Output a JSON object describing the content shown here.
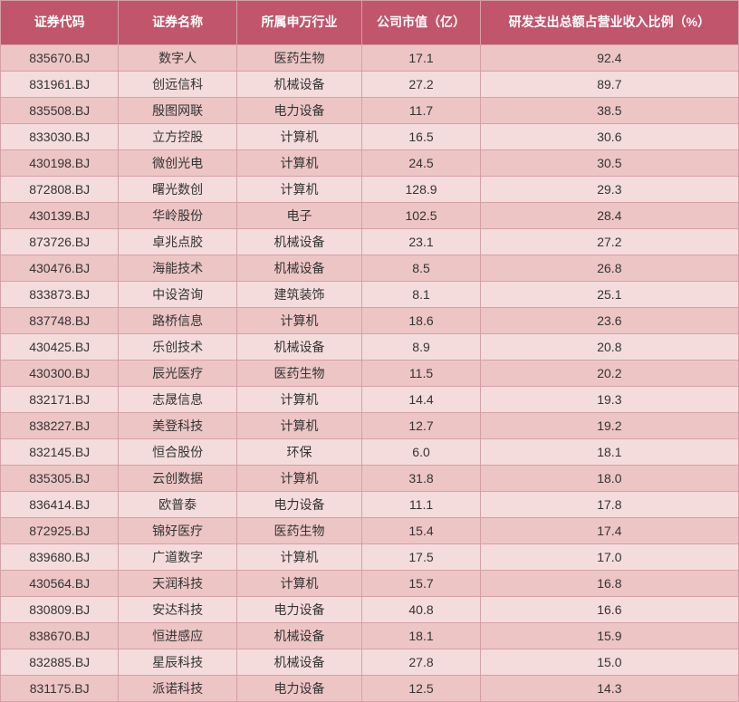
{
  "table": {
    "header_bg": "#c1556c",
    "header_text_color": "#ffffff",
    "row_odd_bg": "#edc5c5",
    "row_even_bg": "#f5dcdc",
    "border_color": "#d4a0a8",
    "cell_text_color": "#333333",
    "font_size": 14,
    "columns": [
      {
        "key": "code",
        "label": "证券代码",
        "width": "16%"
      },
      {
        "key": "name",
        "label": "证券名称",
        "width": "16%"
      },
      {
        "key": "industry",
        "label": "所属申万行业",
        "width": "17%"
      },
      {
        "key": "cap",
        "label": "公司市值（亿）",
        "width": "16%"
      },
      {
        "key": "rd",
        "label": "研发支出总额占营业收入比例（%）",
        "width": "35%"
      }
    ],
    "rows": [
      {
        "code": "835670.BJ",
        "name": "数字人",
        "industry": "医药生物",
        "cap": "17.1",
        "rd": "92.4"
      },
      {
        "code": "831961.BJ",
        "name": "创远信科",
        "industry": "机械设备",
        "cap": "27.2",
        "rd": "89.7"
      },
      {
        "code": "835508.BJ",
        "name": "殷图网联",
        "industry": "电力设备",
        "cap": "11.7",
        "rd": "38.5"
      },
      {
        "code": "833030.BJ",
        "name": "立方控股",
        "industry": "计算机",
        "cap": "16.5",
        "rd": "30.6"
      },
      {
        "code": "430198.BJ",
        "name": "微创光电",
        "industry": "计算机",
        "cap": "24.5",
        "rd": "30.5"
      },
      {
        "code": "872808.BJ",
        "name": "曙光数创",
        "industry": "计算机",
        "cap": "128.9",
        "rd": "29.3"
      },
      {
        "code": "430139.BJ",
        "name": "华岭股份",
        "industry": "电子",
        "cap": "102.5",
        "rd": "28.4"
      },
      {
        "code": "873726.BJ",
        "name": "卓兆点胶",
        "industry": "机械设备",
        "cap": "23.1",
        "rd": "27.2"
      },
      {
        "code": "430476.BJ",
        "name": "海能技术",
        "industry": "机械设备",
        "cap": "8.5",
        "rd": "26.8"
      },
      {
        "code": "833873.BJ",
        "name": "中设咨询",
        "industry": "建筑装饰",
        "cap": "8.1",
        "rd": "25.1"
      },
      {
        "code": "837748.BJ",
        "name": "路桥信息",
        "industry": "计算机",
        "cap": "18.6",
        "rd": "23.6"
      },
      {
        "code": "430425.BJ",
        "name": "乐创技术",
        "industry": "机械设备",
        "cap": "8.9",
        "rd": "20.8"
      },
      {
        "code": "430300.BJ",
        "name": "辰光医疗",
        "industry": "医药生物",
        "cap": "11.5",
        "rd": "20.2"
      },
      {
        "code": "832171.BJ",
        "name": "志晟信息",
        "industry": "计算机",
        "cap": "14.4",
        "rd": "19.3"
      },
      {
        "code": "838227.BJ",
        "name": "美登科技",
        "industry": "计算机",
        "cap": "12.7",
        "rd": "19.2"
      },
      {
        "code": "832145.BJ",
        "name": "恒合股份",
        "industry": "环保",
        "cap": "6.0",
        "rd": "18.1"
      },
      {
        "code": "835305.BJ",
        "name": "云创数据",
        "industry": "计算机",
        "cap": "31.8",
        "rd": "18.0"
      },
      {
        "code": "836414.BJ",
        "name": "欧普泰",
        "industry": "电力设备",
        "cap": "11.1",
        "rd": "17.8"
      },
      {
        "code": "872925.BJ",
        "name": "锦好医疗",
        "industry": "医药生物",
        "cap": "15.4",
        "rd": "17.4"
      },
      {
        "code": "839680.BJ",
        "name": "广道数字",
        "industry": "计算机",
        "cap": "17.5",
        "rd": "17.0"
      },
      {
        "code": "430564.BJ",
        "name": "天润科技",
        "industry": "计算机",
        "cap": "15.7",
        "rd": "16.8"
      },
      {
        "code": "830809.BJ",
        "name": "安达科技",
        "industry": "电力设备",
        "cap": "40.8",
        "rd": "16.6"
      },
      {
        "code": "838670.BJ",
        "name": "恒进感应",
        "industry": "机械设备",
        "cap": "18.1",
        "rd": "15.9"
      },
      {
        "code": "832885.BJ",
        "name": "星辰科技",
        "industry": "机械设备",
        "cap": "27.8",
        "rd": "15.0"
      },
      {
        "code": "831175.BJ",
        "name": "派诺科技",
        "industry": "电力设备",
        "cap": "12.5",
        "rd": "14.3"
      }
    ]
  }
}
